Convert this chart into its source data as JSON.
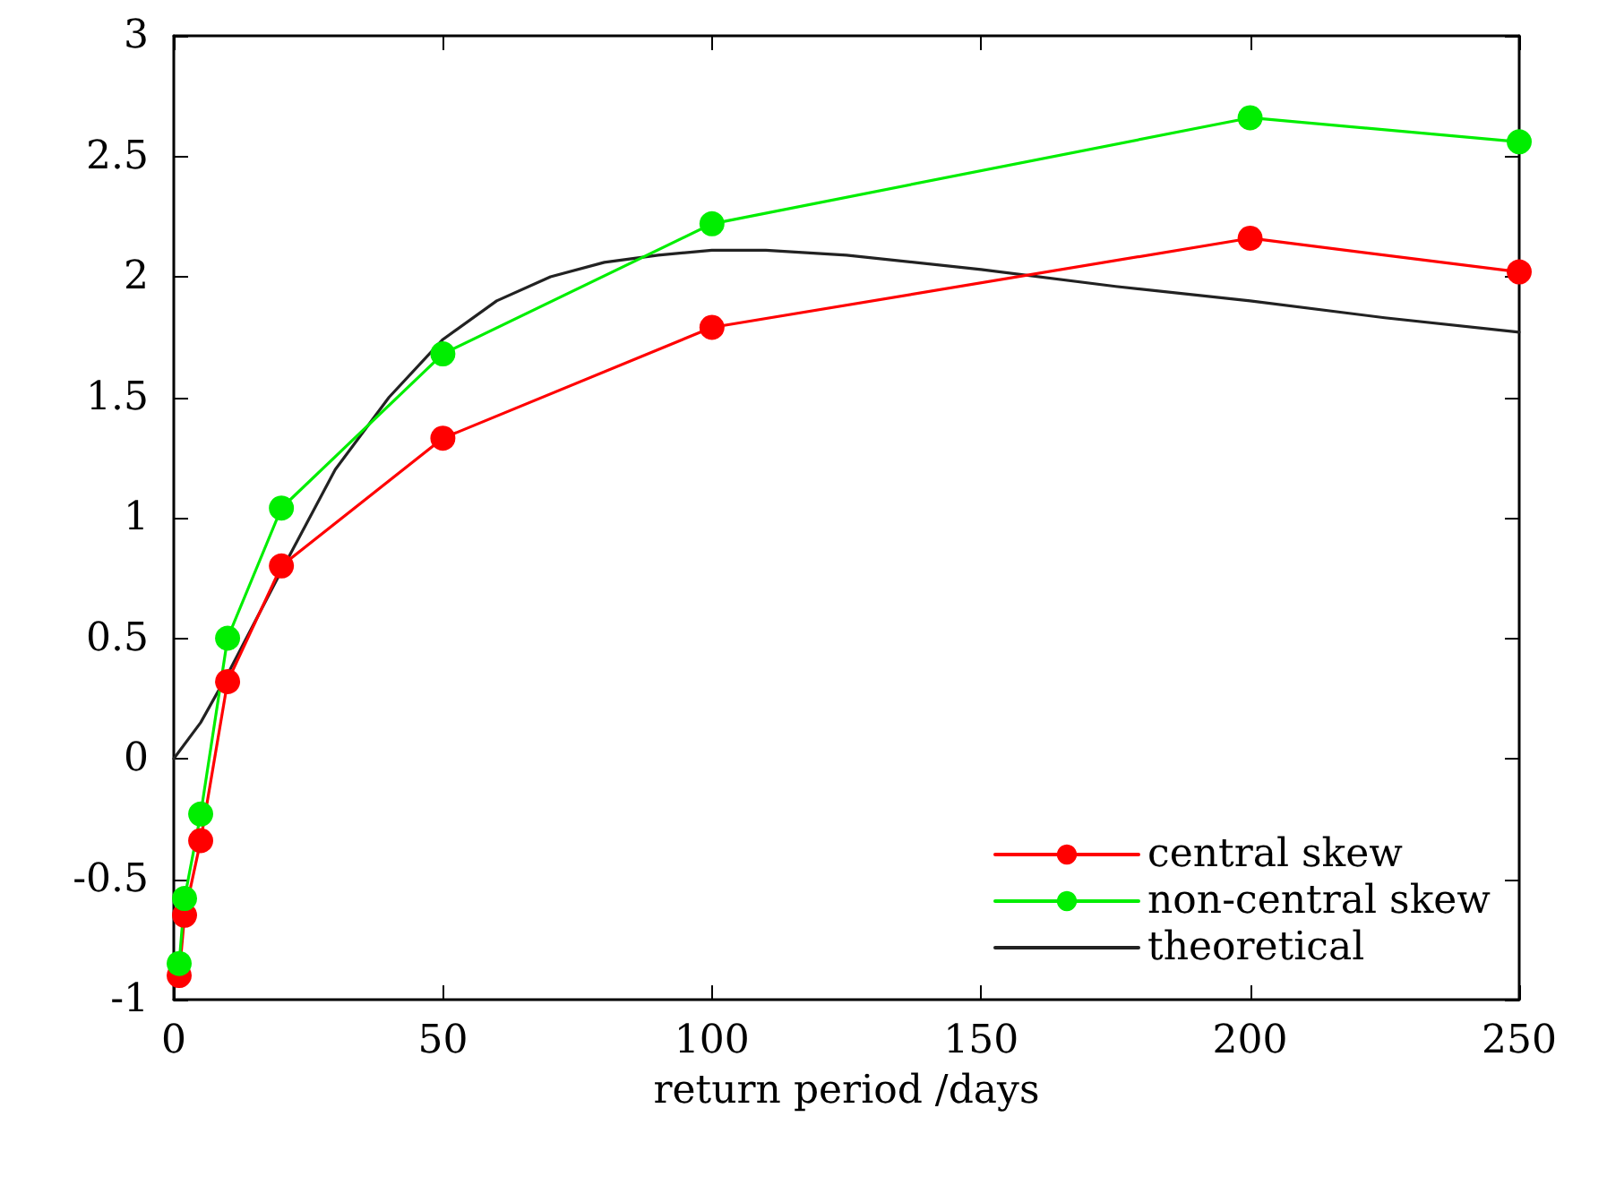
{
  "chart_data": {
    "type": "line",
    "xlabel": "return period /days",
    "xlim": [
      0,
      250
    ],
    "xticks": [
      0,
      50,
      100,
      150,
      200,
      250
    ],
    "ylim": [
      -1,
      3
    ],
    "yticks": [
      -1,
      -0.5,
      0,
      0.5,
      1,
      1.5,
      2,
      2.5,
      3
    ],
    "grid": false,
    "legend": "bottom right",
    "marker": "circle",
    "line_style": "solid",
    "series": [
      {
        "name": "central skew",
        "color": "#ff0000",
        "x": [
          1,
          2,
          5,
          10,
          20,
          50,
          100,
          200,
          250
        ],
        "values": [
          -0.9,
          -0.65,
          -0.34,
          0.32,
          0.8,
          1.33,
          1.79,
          2.16,
          2.02
        ]
      },
      {
        "name": "non-central skew",
        "color": "#00ee00",
        "x": [
          1,
          2,
          5,
          10,
          20,
          50,
          100,
          200,
          250
        ],
        "values": [
          -0.85,
          -0.58,
          -0.23,
          0.5,
          1.04,
          1.68,
          2.22,
          2.66,
          2.56
        ]
      },
      {
        "name": "theoretical",
        "color": "#222222",
        "marker": "none",
        "x": [
          0,
          5,
          10,
          20,
          30,
          40,
          50,
          60,
          70,
          80,
          90,
          100,
          110,
          125,
          150,
          175,
          200,
          225,
          250
        ],
        "values": [
          0,
          0.15,
          0.35,
          0.78,
          1.2,
          1.5,
          1.74,
          1.9,
          2.0,
          2.06,
          2.09,
          2.11,
          2.11,
          2.09,
          2.03,
          1.96,
          1.9,
          1.83,
          1.77
        ]
      }
    ]
  }
}
